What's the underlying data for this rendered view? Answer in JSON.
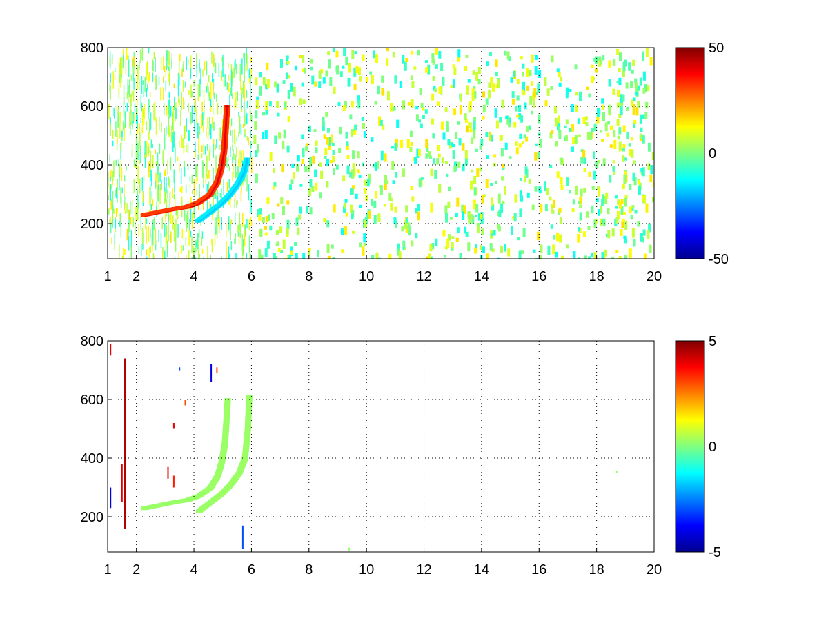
{
  "chart_data": [
    {
      "type": "heatmap",
      "title": "",
      "xlabel": "",
      "ylabel": "",
      "xlim": [
        1,
        20
      ],
      "ylim": [
        80,
        800
      ],
      "grid": true,
      "grid_style": "dotted",
      "colormap": "jet",
      "xticks": [
        1,
        2,
        4,
        6,
        8,
        10,
        12,
        14,
        16,
        18,
        20
      ],
      "xtick_labels": [
        "1",
        "2",
        "4",
        "6",
        "8",
        "10",
        "12",
        "14",
        "16",
        "18",
        "20"
      ],
      "yticks": [
        200,
        400,
        600,
        800
      ],
      "ytick_labels": [
        "200",
        "400",
        "600",
        "800"
      ],
      "colorbar": {
        "min": -50,
        "max": 50,
        "tick_labels": [
          "50",
          "0",
          "-50"
        ]
      },
      "features": [
        {
          "description": "strong positive ridge",
          "value": 40,
          "path": [
            [
              2.3,
              230
            ],
            [
              2.8,
              240
            ],
            [
              3.3,
              250
            ],
            [
              3.8,
              258
            ],
            [
              4.2,
              272
            ],
            [
              4.6,
              300
            ],
            [
              4.85,
              340
            ],
            [
              5.0,
              390
            ],
            [
              5.1,
              450
            ],
            [
              5.15,
              520
            ],
            [
              5.2,
              600
            ]
          ]
        },
        {
          "description": "negative ridge",
          "value": -18,
          "path": [
            [
              4.2,
              210
            ],
            [
              4.6,
              240
            ],
            [
              5.0,
              270
            ],
            [
              5.3,
              300
            ],
            [
              5.6,
              340
            ],
            [
              5.8,
              380
            ],
            [
              5.9,
              420
            ]
          ]
        }
      ],
      "background": "scattered noise cells with values near 0 (about -10 to 15), dense for x < 6, sparser beyond"
    },
    {
      "type": "heatmap",
      "title": "",
      "xlabel": "",
      "ylabel": "",
      "xlim": [
        1,
        20
      ],
      "ylim": [
        80,
        800
      ],
      "grid": true,
      "grid_style": "dotted",
      "colormap": "jet",
      "xticks": [
        1,
        2,
        4,
        6,
        8,
        10,
        12,
        14,
        16,
        18,
        20
      ],
      "xtick_labels": [
        "1",
        "2",
        "4",
        "6",
        "8",
        "10",
        "12",
        "14",
        "16",
        "18",
        "20"
      ],
      "yticks": [
        200,
        400,
        600,
        800
      ],
      "ytick_labels": [
        "200",
        "400",
        "600",
        "800"
      ],
      "colorbar": {
        "min": -5,
        "max": 5,
        "tick_labels": [
          "5",
          "0",
          "-5"
        ]
      },
      "features": [
        {
          "description": "ridge near zero",
          "value": 0.3,
          "path": [
            [
              2.3,
              230
            ],
            [
              2.8,
              240
            ],
            [
              3.3,
              250
            ],
            [
              3.8,
              258
            ],
            [
              4.2,
              272
            ],
            [
              4.6,
              300
            ],
            [
              4.85,
              340
            ],
            [
              5.0,
              390
            ],
            [
              5.1,
              450
            ],
            [
              5.15,
              520
            ],
            [
              5.2,
              600
            ]
          ]
        },
        {
          "description": "faint second ridge",
          "value": 0.3,
          "path": [
            [
              4.2,
              220
            ],
            [
              4.6,
              250
            ],
            [
              5.0,
              280
            ],
            [
              5.3,
              310
            ],
            [
              5.6,
              350
            ],
            [
              5.8,
              400
            ],
            [
              5.9,
              500
            ],
            [
              5.95,
              610
            ]
          ]
        }
      ],
      "spikes": [
        {
          "x": 1.1,
          "y": [
            230,
            300
          ],
          "value": -4
        },
        {
          "x": 1.1,
          "y": [
            750,
            790
          ],
          "value": 4
        },
        {
          "x": 1.5,
          "y": [
            250,
            380
          ],
          "value": 4
        },
        {
          "x": 1.6,
          "y": [
            160,
            740
          ],
          "value": 4.5
        },
        {
          "x": 3.1,
          "y": [
            330,
            370
          ],
          "value": 4
        },
        {
          "x": 3.3,
          "y": [
            300,
            340
          ],
          "value": 3.5
        },
        {
          "x": 3.3,
          "y": [
            500,
            520
          ],
          "value": 4
        },
        {
          "x": 3.7,
          "y": [
            580,
            600
          ],
          "value": 3
        },
        {
          "x": 4.6,
          "y": [
            660,
            720
          ],
          "value": -4
        },
        {
          "x": 4.8,
          "y": [
            690,
            710
          ],
          "value": 3
        },
        {
          "x": 5.7,
          "y": [
            90,
            170
          ],
          "value": -3
        },
        {
          "x": 3.5,
          "y": [
            700,
            710
          ],
          "value": -3
        },
        {
          "x": 18.7,
          "y": [
            350,
            358
          ],
          "value": 0.2
        },
        {
          "x": 9.4,
          "y": [
            85,
            95
          ],
          "value": 0.2
        }
      ]
    }
  ]
}
